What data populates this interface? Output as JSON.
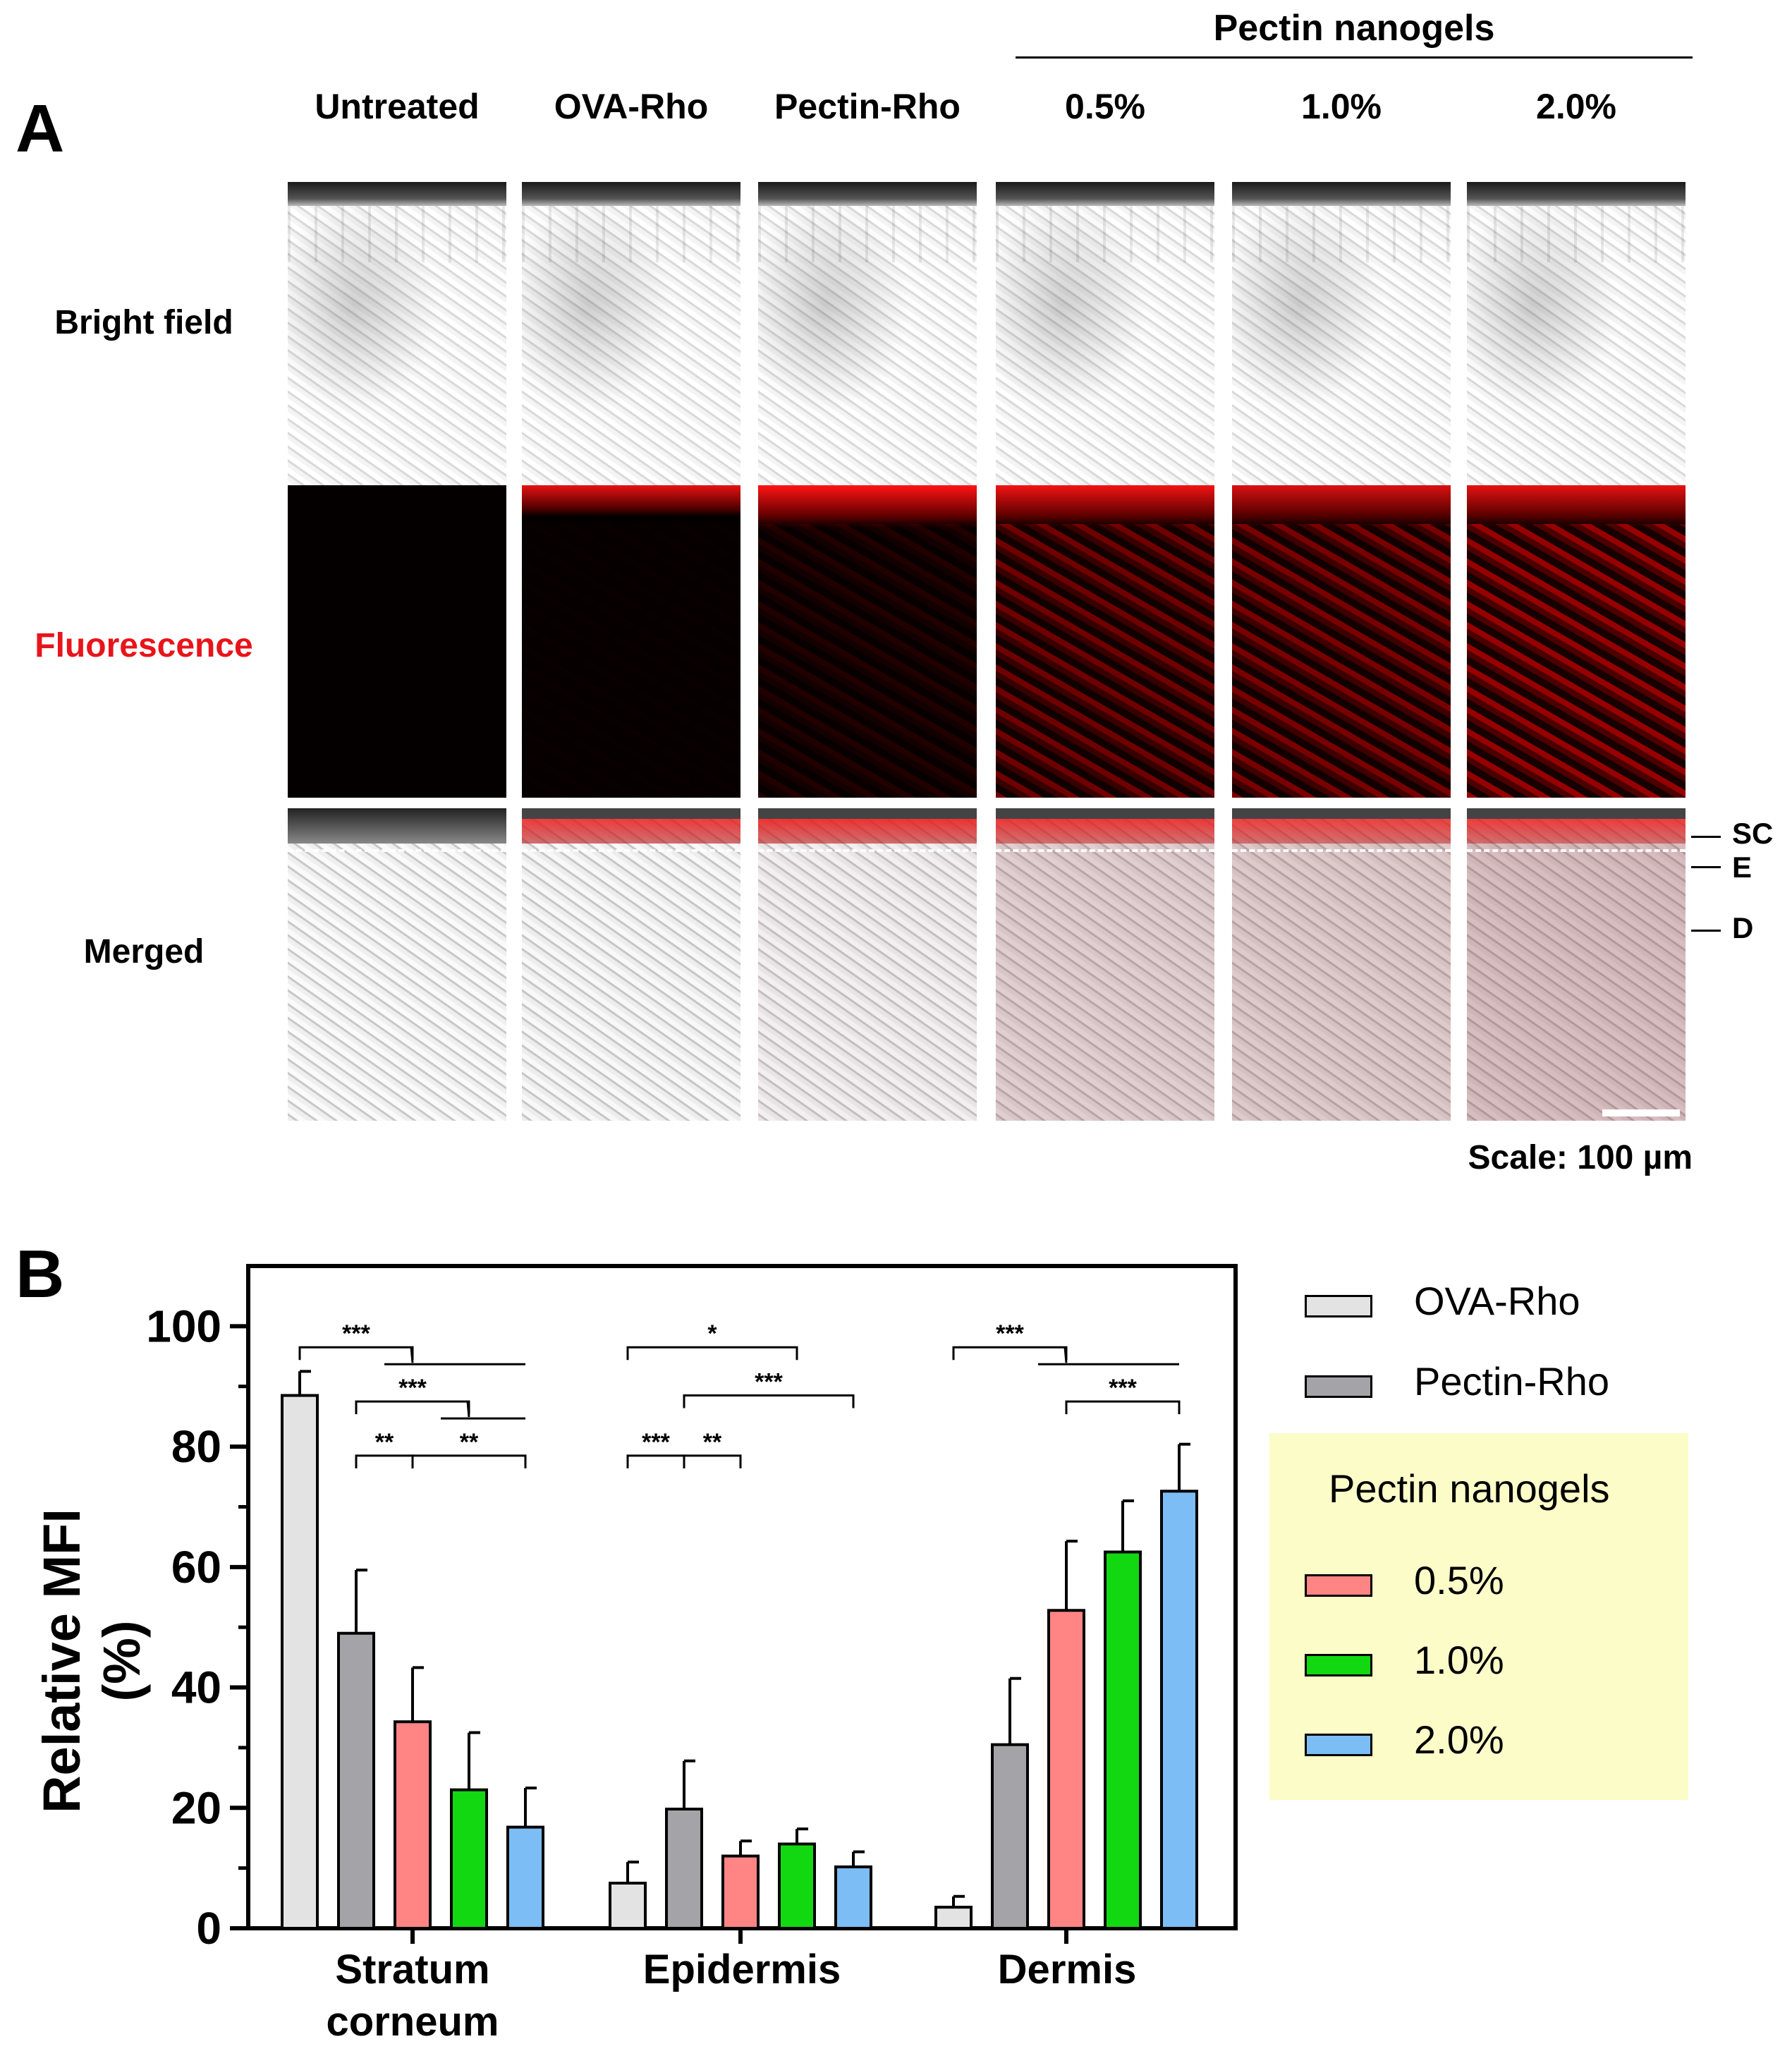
{
  "panel_a": {
    "letter": "A",
    "group_header": "Pectin nanogels",
    "columns": [
      "Untreated",
      "OVA-Rho",
      "Pectin-Rho",
      "0.5%",
      "1.0%",
      "2.0%"
    ],
    "rows": [
      "Bright field",
      "Fluorescence",
      "Merged"
    ],
    "fluorescence_color": "#e8141b",
    "layer_markers": [
      "SC",
      "E",
      "D"
    ],
    "scale_text": "Scale: 100 µm"
  },
  "chart_data": {
    "type": "bar",
    "panel_letter": "B",
    "categories": [
      "Stratum\ncorneum",
      "Epidermis",
      "Dermis"
    ],
    "ylabel": "Relative MFI (%)",
    "xlabel": "",
    "ylim": [
      0,
      110
    ],
    "yticks": [
      0,
      20,
      40,
      60,
      80,
      100
    ],
    "series": [
      {
        "name": "OVA-Rho",
        "color": "#e3e3e3",
        "values": [
          88.5,
          7.5,
          3.5
        ],
        "errors": [
          4.0,
          3.5,
          1.8
        ]
      },
      {
        "name": "Pectin-Rho",
        "color": "#a3a3a8",
        "values": [
          49.0,
          19.8,
          30.5
        ],
        "errors": [
          10.5,
          8.0,
          11.0
        ]
      },
      {
        "name": "0.5%",
        "color": "#ff8585",
        "values": [
          34.3,
          12.0,
          52.8
        ],
        "errors": [
          9.0,
          2.5,
          11.5
        ]
      },
      {
        "name": "1.0%",
        "color": "#12d812",
        "values": [
          23.0,
          14.0,
          62.5
        ],
        "errors": [
          9.5,
          2.5,
          8.5
        ]
      },
      {
        "name": "2.0%",
        "color": "#7dbdf5",
        "values": [
          16.8,
          10.2,
          72.6
        ],
        "errors": [
          6.5,
          2.5,
          7.8
        ]
      }
    ],
    "legend": {
      "group_title": "Pectin nanogels",
      "group_background": "#fcfcc8",
      "placement": "right"
    },
    "significance": [
      {
        "category": 0,
        "from": 0,
        "to": [
          2,
          3,
          4
        ],
        "label": "***",
        "y": 96.5
      },
      {
        "category": 0,
        "from": 1,
        "to": [
          3,
          4
        ],
        "label": "***",
        "y": 87.5
      },
      {
        "category": 0,
        "from": 1,
        "to": [
          2
        ],
        "label": "**",
        "y": 78.5
      },
      {
        "category": 0,
        "from": 2,
        "to": [
          4
        ],
        "label": "**",
        "y": 78.5
      },
      {
        "category": 1,
        "from": 0,
        "to": [
          3
        ],
        "label": "*",
        "y": 96.5
      },
      {
        "category": 1,
        "from": 1,
        "to": [
          4
        ],
        "label": "***",
        "y": 88.5
      },
      {
        "category": 1,
        "from": 0,
        "to": [
          1
        ],
        "label": "***",
        "y": 78.5
      },
      {
        "category": 1,
        "from": 1,
        "to": [
          2
        ],
        "label": "**",
        "y": 78.5
      },
      {
        "category": 2,
        "from": 0,
        "to": [
          2,
          3,
          4
        ],
        "label": "***",
        "y": 96.5
      },
      {
        "category": 2,
        "from": 2,
        "to": [
          4
        ],
        "label": "***",
        "y": 87.5
      }
    ]
  }
}
